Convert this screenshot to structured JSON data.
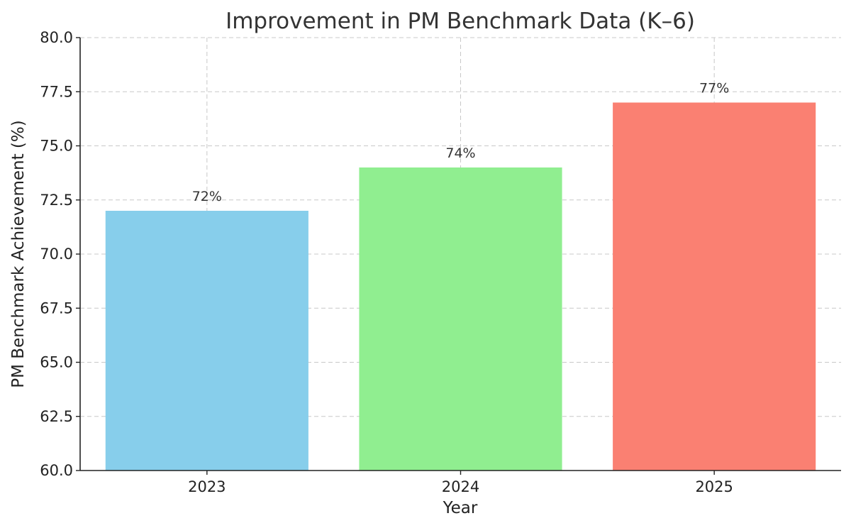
{
  "chart_data": {
    "type": "bar",
    "title": "Improvement in PM Benchmark Data (K–6)",
    "xlabel": "Year",
    "ylabel": "PM Benchmark Achievement (%)",
    "categories": [
      "2023",
      "2024",
      "2025"
    ],
    "values": [
      72,
      74,
      77
    ],
    "data_labels": [
      "72%",
      "74%",
      "77%"
    ],
    "colors": [
      "#87ceeb",
      "#90ee90",
      "#fa8072"
    ],
    "ylim": [
      60,
      80
    ],
    "yticks": [
      60.0,
      62.5,
      65.0,
      67.5,
      70.0,
      72.5,
      75.0,
      77.5,
      80.0
    ],
    "ytick_labels": [
      "60.0",
      "62.5",
      "65.0",
      "67.5",
      "70.0",
      "72.5",
      "75.0",
      "77.5",
      "80.0"
    ],
    "grid": true,
    "legend": "none"
  }
}
